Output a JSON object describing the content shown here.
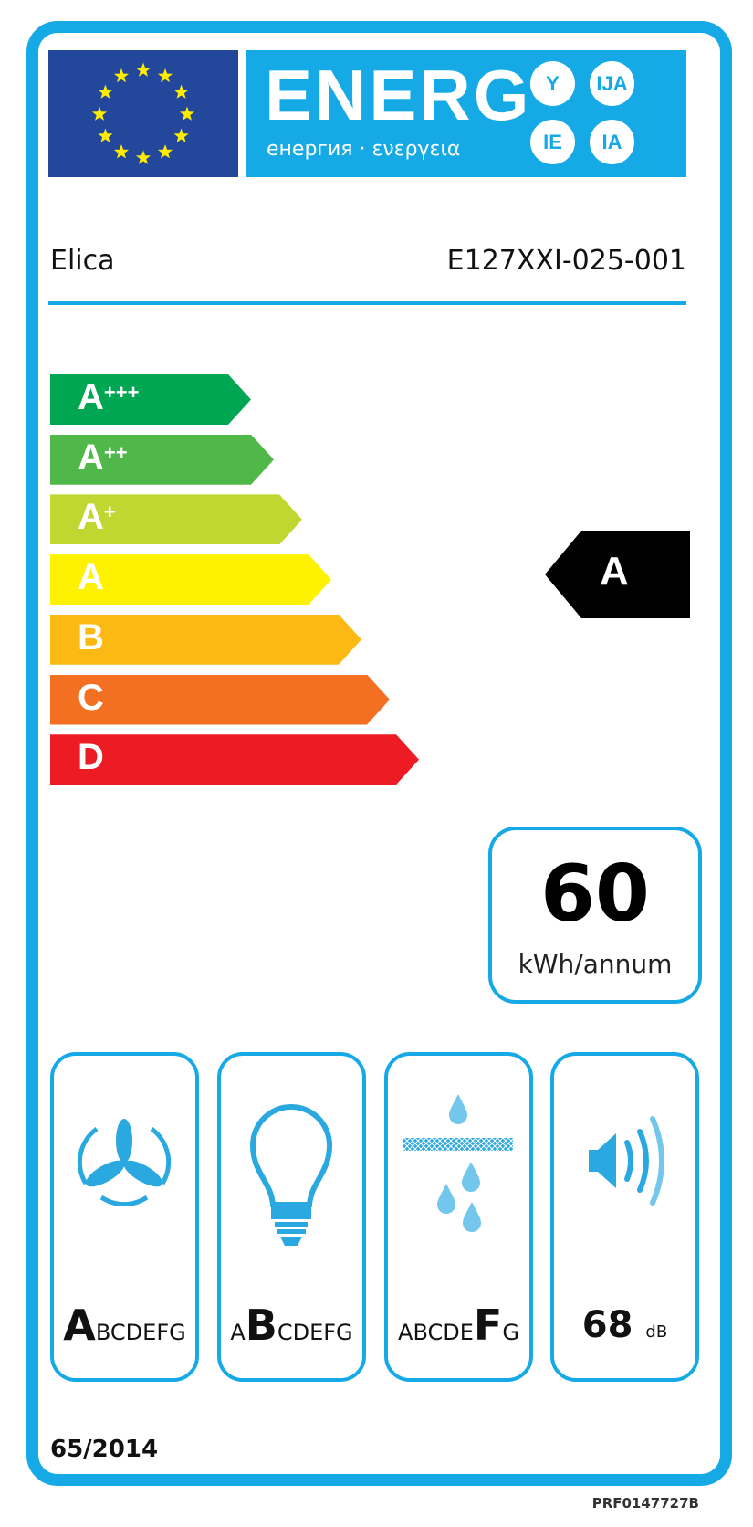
{
  "header": {
    "title": "ENERG",
    "subtitle": "енергия · ενεργεια",
    "suffixes": [
      "Y",
      "IJA",
      "IE",
      "IA"
    ]
  },
  "supplier": "Elica",
  "model": "E127XXI-025-001",
  "scale": [
    {
      "label": "A",
      "plus": "+++",
      "color": "#00a651"
    },
    {
      "label": "A",
      "plus": "++",
      "color": "#50b848"
    },
    {
      "label": "A",
      "plus": "+",
      "color": "#bfd730"
    },
    {
      "label": "A",
      "plus": "",
      "color": "#fff200"
    },
    {
      "label": "B",
      "plus": "",
      "color": "#fdb913"
    },
    {
      "label": "C",
      "plus": "",
      "color": "#f36f21"
    },
    {
      "label": "D",
      "plus": "",
      "color": "#ed1c24"
    }
  ],
  "rating": "A",
  "energy": {
    "value": "60",
    "unit": "kWh/annum"
  },
  "classes": [
    {
      "icon": "fan-icon",
      "pre": "",
      "sel": "A",
      "post": "BCDEFG"
    },
    {
      "icon": "light-bulb-icon",
      "pre": "A",
      "sel": "B",
      "post": "CDEFG"
    },
    {
      "icon": "grease-filter-icon",
      "pre": "ABCDE",
      "sel": "F",
      "post": "G"
    }
  ],
  "noise": {
    "icon": "speaker-icon",
    "value": "68",
    "unit": "dB"
  },
  "regulation": "65/2014",
  "product_code": "PRF0147727B",
  "colors": {
    "frame": "#15a9e6",
    "eu_blue": "#22479b",
    "star": "#ffed00"
  }
}
